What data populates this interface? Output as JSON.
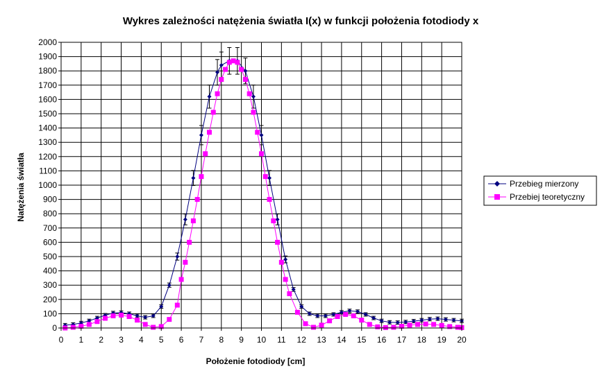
{
  "chart_data": {
    "type": "line",
    "title": "Wykres zależności natężenia światła I(x) w funkcji położenia fotodiody x",
    "xlabel": "Położenie fotodiody [cm]",
    "ylabel": "Natężenia światła",
    "xlim": [
      0,
      20
    ],
    "ylim": [
      0,
      2000
    ],
    "x_ticks": [
      0,
      1,
      2,
      3,
      4,
      5,
      6,
      7,
      8,
      9,
      10,
      11,
      12,
      13,
      14,
      15,
      16,
      17,
      18,
      19,
      20
    ],
    "y_ticks": [
      0,
      100,
      200,
      300,
      400,
      500,
      600,
      700,
      800,
      900,
      1000,
      1100,
      1200,
      1300,
      1400,
      1500,
      1600,
      1700,
      1800,
      1900,
      2000
    ],
    "grid": true,
    "legend_position": "right",
    "series": [
      {
        "name": "Przebieg mierzony",
        "color": "#000080",
        "marker": "diamond",
        "error_bars": true,
        "x": [
          0.2,
          0.6,
          1.0,
          1.4,
          1.8,
          2.2,
          2.6,
          3.0,
          3.4,
          3.8,
          4.2,
          4.6,
          5.0,
          5.4,
          5.8,
          6.2,
          6.6,
          7.0,
          7.4,
          7.8,
          8.0,
          8.4,
          8.8,
          9.2,
          9.6,
          10.0,
          10.4,
          10.8,
          11.2,
          11.6,
          12.0,
          12.4,
          12.8,
          13.2,
          13.6,
          14.0,
          14.4,
          14.8,
          15.2,
          15.6,
          16.0,
          16.4,
          16.8,
          17.2,
          17.6,
          18.0,
          18.4,
          18.8,
          19.2,
          19.6,
          20.0
        ],
        "y": [
          20,
          25,
          35,
          50,
          70,
          90,
          105,
          108,
          100,
          85,
          75,
          85,
          150,
          300,
          500,
          760,
          1050,
          1350,
          1620,
          1790,
          1840,
          1870,
          1870,
          1800,
          1620,
          1350,
          1050,
          760,
          480,
          270,
          150,
          100,
          85,
          85,
          95,
          110,
          120,
          115,
          95,
          70,
          50,
          40,
          38,
          42,
          48,
          55,
          62,
          65,
          60,
          55,
          50
        ]
      },
      {
        "name": "Przebiej teoretyczny",
        "color": "#FF00FF",
        "marker": "square",
        "x": [
          0.2,
          0.6,
          1.0,
          1.4,
          1.8,
          2.2,
          2.6,
          3.0,
          3.4,
          3.8,
          4.2,
          4.6,
          5.0,
          5.4,
          5.8,
          6.0,
          6.2,
          6.4,
          6.6,
          6.8,
          7.0,
          7.2,
          7.4,
          7.6,
          7.8,
          8.0,
          8.2,
          8.4,
          8.6,
          8.8,
          9.0,
          9.2,
          9.4,
          9.6,
          9.8,
          10.0,
          10.2,
          10.4,
          10.6,
          10.8,
          11.0,
          11.2,
          11.4,
          11.8,
          12.2,
          12.6,
          13.0,
          13.4,
          13.8,
          14.2,
          14.6,
          15.0,
          15.4,
          15.8,
          16.2,
          16.6,
          17.0,
          17.4,
          17.8,
          18.2,
          18.6,
          19.0,
          19.4,
          19.8,
          20.0
        ],
        "y": [
          0,
          5,
          12,
          25,
          45,
          68,
          85,
          90,
          80,
          55,
          25,
          5,
          10,
          60,
          160,
          340,
          460,
          600,
          750,
          900,
          1060,
          1220,
          1370,
          1510,
          1640,
          1740,
          1810,
          1860,
          1870,
          1860,
          1810,
          1740,
          1640,
          1510,
          1370,
          1220,
          1060,
          900,
          750,
          600,
          460,
          340,
          240,
          110,
          30,
          5,
          20,
          50,
          80,
          95,
          85,
          55,
          25,
          8,
          3,
          5,
          12,
          20,
          25,
          28,
          25,
          18,
          10,
          5,
          3
        ]
      }
    ]
  }
}
